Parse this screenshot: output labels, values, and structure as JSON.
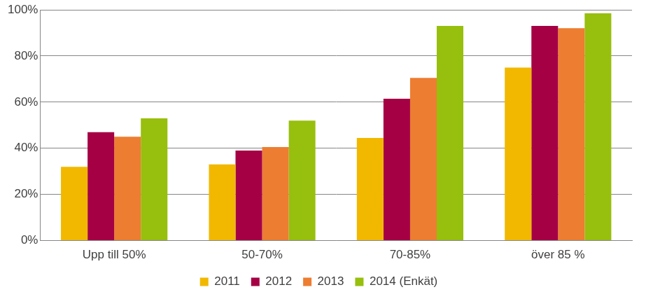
{
  "chart_data": {
    "type": "bar",
    "categories": [
      "Upp till 50%",
      "50-70%",
      "70-85%",
      "över 85 %"
    ],
    "series": [
      {
        "name": "2011",
        "color": "#F2B800",
        "values": [
          32,
          33,
          44.5,
          75
        ]
      },
      {
        "name": "2012",
        "color": "#A50044",
        "values": [
          47,
          39,
          61.5,
          93
        ]
      },
      {
        "name": "2013",
        "color": "#ED7D31",
        "values": [
          45,
          40.5,
          70.5,
          92
        ]
      },
      {
        "name": "2014 (Enkät)",
        "color": "#97BF0D",
        "values": [
          53,
          52,
          93,
          98.5
        ]
      }
    ],
    "ylim": [
      0,
      100
    ],
    "yticks": [
      {
        "value": 0,
        "label": "0%"
      },
      {
        "value": 20,
        "label": "20%"
      },
      {
        "value": 40,
        "label": "40%"
      },
      {
        "value": 60,
        "label": "60%"
      },
      {
        "value": 80,
        "label": "80%"
      },
      {
        "value": 100,
        "label": "100%"
      }
    ],
    "grid": true,
    "legend": "bottom"
  }
}
